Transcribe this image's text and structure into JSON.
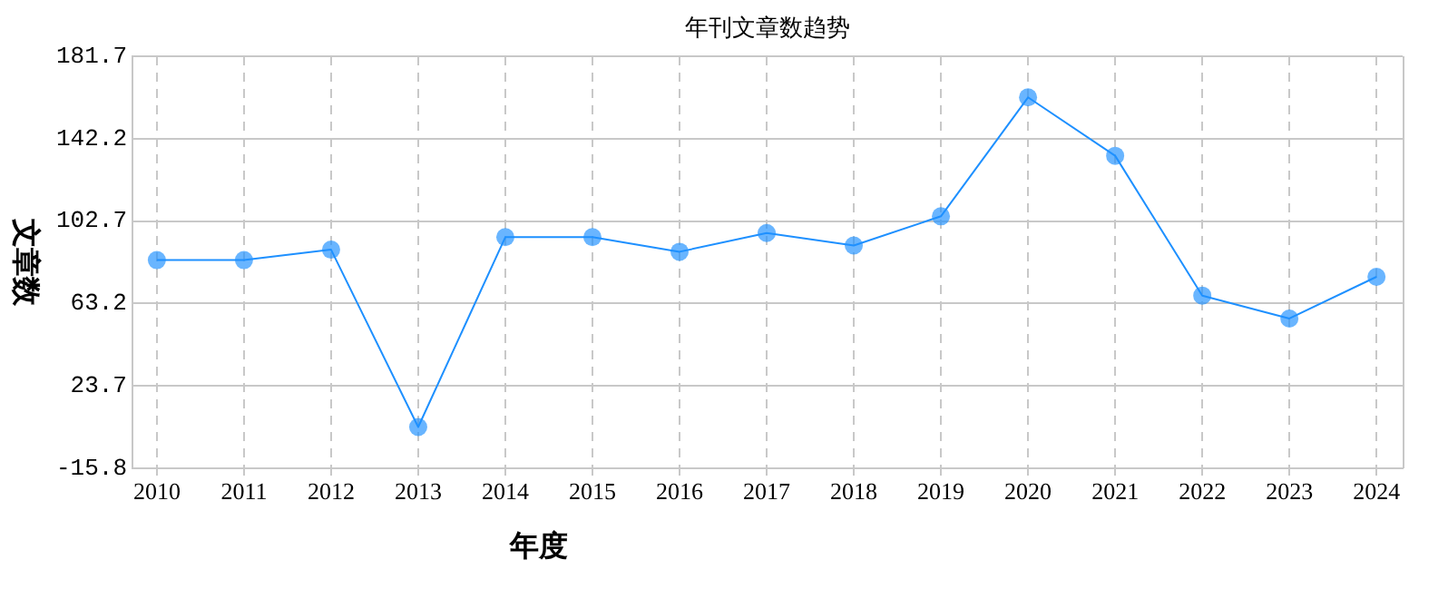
{
  "chart_data": {
    "type": "line",
    "title": "年刊文章数趋势",
    "xlabel": "年度",
    "ylabel": "文章数",
    "categories": [
      "2010",
      "2011",
      "2012",
      "2013",
      "2014",
      "2015",
      "2016",
      "2017",
      "2018",
      "2019",
      "2020",
      "2021",
      "2022",
      "2023",
      "2024"
    ],
    "series": [
      {
        "color": "#1e90ff",
        "values": [
          84,
          84,
          89,
          4,
          95,
          95,
          88,
          97,
          91,
          105,
          162,
          134,
          67,
          56,
          76
        ]
      }
    ],
    "ylim": [
      -15.8,
      181.7
    ],
    "yticks": [
      -15.8,
      23.7,
      63.2,
      102.7,
      142.2,
      181.7
    ],
    "grid": true,
    "legend": false,
    "marker": "circle",
    "line_style": "solid"
  }
}
